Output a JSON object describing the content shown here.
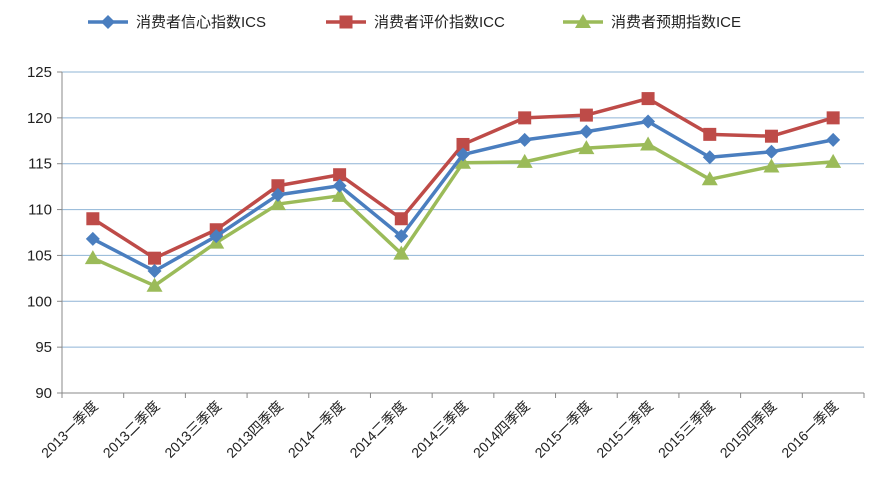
{
  "chart_data": {
    "type": "line",
    "title": "",
    "xlabel": "",
    "ylabel": "",
    "ylim": [
      90,
      125
    ],
    "yticks": [
      90,
      95,
      100,
      105,
      110,
      115,
      120,
      125
    ],
    "grid": true,
    "legend_position": "top",
    "categories": [
      "2013一季度",
      "2013二季度",
      "2013三季度",
      "2013四季度",
      "2014一季度",
      "2014二季度",
      "2014三季度",
      "2014四季度",
      "2015一季度",
      "2015二季度",
      "2015三季度",
      "2015四季度",
      "2016一季度"
    ],
    "series": [
      {
        "name": "消费者信心指数ICS",
        "color": "#4a7ebf",
        "marker": "diamond",
        "values": [
          106.8,
          103.3,
          107.1,
          111.6,
          112.6,
          107.1,
          116.0,
          117.6,
          118.5,
          119.6,
          115.7,
          116.3,
          117.6
        ]
      },
      {
        "name": "消费者评价指数ICC",
        "color": "#be4b48",
        "marker": "square",
        "values": [
          109.0,
          104.7,
          107.8,
          112.6,
          113.8,
          109.0,
          117.1,
          120.0,
          120.3,
          122.1,
          118.2,
          118.0,
          120.0
        ]
      },
      {
        "name": "消费者预期指数ICE",
        "color": "#9bbb59",
        "marker": "triangle",
        "values": [
          104.7,
          101.7,
          106.4,
          110.6,
          111.5,
          105.2,
          115.1,
          115.2,
          116.7,
          117.1,
          113.3,
          114.7,
          115.2
        ]
      }
    ]
  }
}
